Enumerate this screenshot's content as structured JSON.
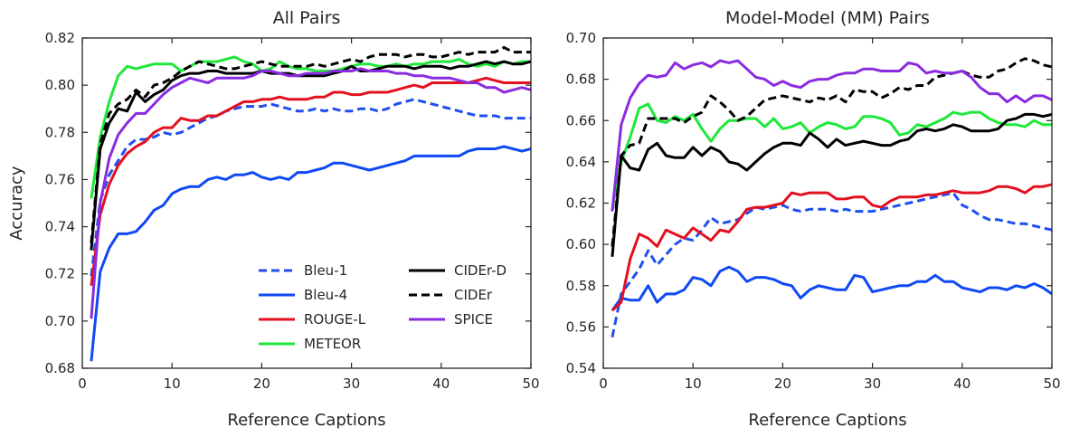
{
  "chart_data": [
    {
      "type": "line",
      "title": "All Pairs",
      "xlabel": "Reference Captions",
      "ylabel": "Accuracy",
      "xlim": [
        0,
        50
      ],
      "ylim": [
        0.68,
        0.82
      ],
      "xticks": [
        "0",
        "10",
        "20",
        "30",
        "40",
        "50"
      ],
      "yticks": [
        "0.68",
        "0.70",
        "0.72",
        "0.74",
        "0.76",
        "0.78",
        "0.80",
        "0.82"
      ],
      "legend_position": "lower-right",
      "legend_columns": 2,
      "x": [
        1,
        2,
        3,
        4,
        5,
        6,
        7,
        8,
        9,
        10,
        11,
        12,
        13,
        14,
        15,
        16,
        17,
        18,
        19,
        20,
        21,
        22,
        23,
        24,
        25,
        26,
        27,
        28,
        29,
        30,
        31,
        32,
        33,
        34,
        35,
        36,
        37,
        38,
        39,
        40,
        41,
        42,
        43,
        44,
        45,
        46,
        47,
        48,
        49,
        50
      ],
      "series": [
        {
          "name": "Bleu-1",
          "color": "#1f4ff0",
          "dash": "dashed",
          "values": [
            0.719,
            0.751,
            0.762,
            0.768,
            0.774,
            0.777,
            0.777,
            0.778,
            0.78,
            0.779,
            0.78,
            0.782,
            0.784,
            0.786,
            0.787,
            0.789,
            0.79,
            0.791,
            0.791,
            0.791,
            0.792,
            0.791,
            0.79,
            0.789,
            0.789,
            0.79,
            0.789,
            0.79,
            0.789,
            0.789,
            0.79,
            0.79,
            0.789,
            0.79,
            0.792,
            0.793,
            0.794,
            0.793,
            0.792,
            0.791,
            0.79,
            0.789,
            0.788,
            0.787,
            0.787,
            0.787,
            0.786,
            0.786,
            0.786,
            0.786
          ]
        },
        {
          "name": "Bleu-4",
          "color": "#0f48f5",
          "dash": "solid",
          "values": [
            0.683,
            0.721,
            0.731,
            0.737,
            0.737,
            0.738,
            0.742,
            0.747,
            0.749,
            0.754,
            0.756,
            0.757,
            0.757,
            0.76,
            0.761,
            0.76,
            0.762,
            0.762,
            0.763,
            0.761,
            0.76,
            0.761,
            0.76,
            0.763,
            0.763,
            0.764,
            0.765,
            0.767,
            0.767,
            0.766,
            0.765,
            0.764,
            0.765,
            0.766,
            0.767,
            0.768,
            0.77,
            0.77,
            0.77,
            0.77,
            0.77,
            0.77,
            0.772,
            0.773,
            0.773,
            0.773,
            0.774,
            0.773,
            0.772,
            0.773
          ]
        },
        {
          "name": "ROUGE-L",
          "color": "#e3101f",
          "dash": "solid",
          "values": [
            0.715,
            0.745,
            0.758,
            0.766,
            0.771,
            0.774,
            0.776,
            0.78,
            0.782,
            0.782,
            0.786,
            0.785,
            0.785,
            0.787,
            0.787,
            0.789,
            0.791,
            0.793,
            0.793,
            0.794,
            0.794,
            0.795,
            0.794,
            0.794,
            0.794,
            0.795,
            0.795,
            0.797,
            0.797,
            0.796,
            0.796,
            0.797,
            0.797,
            0.797,
            0.798,
            0.799,
            0.8,
            0.799,
            0.801,
            0.801,
            0.801,
            0.801,
            0.801,
            0.802,
            0.803,
            0.802,
            0.801,
            0.801,
            0.801,
            0.801
          ]
        },
        {
          "name": "METEOR",
          "color": "#1ee83a",
          "dash": "solid",
          "values": [
            0.752,
            0.778,
            0.793,
            0.804,
            0.808,
            0.807,
            0.808,
            0.809,
            0.809,
            0.809,
            0.806,
            0.808,
            0.81,
            0.81,
            0.81,
            0.811,
            0.812,
            0.81,
            0.809,
            0.806,
            0.807,
            0.81,
            0.808,
            0.807,
            0.807,
            0.806,
            0.806,
            0.806,
            0.807,
            0.808,
            0.809,
            0.809,
            0.808,
            0.808,
            0.809,
            0.808,
            0.809,
            0.809,
            0.81,
            0.81,
            0.81,
            0.811,
            0.809,
            0.808,
            0.809,
            0.808,
            0.81,
            0.809,
            0.81,
            0.81
          ]
        },
        {
          "name": "CIDEr-D",
          "color": "#000000",
          "dash": "solid",
          "values": [
            0.73,
            0.773,
            0.784,
            0.79,
            0.789,
            0.797,
            0.793,
            0.796,
            0.798,
            0.802,
            0.804,
            0.805,
            0.805,
            0.806,
            0.806,
            0.805,
            0.805,
            0.805,
            0.805,
            0.806,
            0.805,
            0.805,
            0.805,
            0.804,
            0.804,
            0.804,
            0.804,
            0.805,
            0.806,
            0.808,
            0.806,
            0.806,
            0.807,
            0.808,
            0.808,
            0.808,
            0.807,
            0.808,
            0.808,
            0.808,
            0.807,
            0.808,
            0.808,
            0.809,
            0.81,
            0.809,
            0.81,
            0.809,
            0.809,
            0.81
          ]
        },
        {
          "name": "CIDEr",
          "color": "#000000",
          "dash": "dashed",
          "values": [
            0.733,
            0.775,
            0.788,
            0.792,
            0.794,
            0.798,
            0.795,
            0.8,
            0.801,
            0.803,
            0.806,
            0.808,
            0.81,
            0.809,
            0.808,
            0.807,
            0.807,
            0.808,
            0.809,
            0.81,
            0.809,
            0.808,
            0.808,
            0.808,
            0.808,
            0.809,
            0.808,
            0.809,
            0.81,
            0.811,
            0.81,
            0.812,
            0.813,
            0.813,
            0.813,
            0.812,
            0.813,
            0.813,
            0.812,
            0.812,
            0.813,
            0.814,
            0.813,
            0.814,
            0.814,
            0.814,
            0.816,
            0.814,
            0.814,
            0.814
          ]
        },
        {
          "name": "SPICE",
          "color": "#8a2be2",
          "dash": "solid",
          "values": [
            0.701,
            0.75,
            0.769,
            0.779,
            0.784,
            0.788,
            0.788,
            0.792,
            0.796,
            0.799,
            0.801,
            0.803,
            0.802,
            0.801,
            0.803,
            0.803,
            0.803,
            0.803,
            0.804,
            0.806,
            0.806,
            0.805,
            0.804,
            0.804,
            0.805,
            0.805,
            0.805,
            0.806,
            0.806,
            0.806,
            0.807,
            0.806,
            0.806,
            0.806,
            0.805,
            0.805,
            0.804,
            0.804,
            0.803,
            0.803,
            0.803,
            0.802,
            0.801,
            0.801,
            0.799,
            0.799,
            0.797,
            0.798,
            0.799,
            0.798
          ]
        }
      ]
    },
    {
      "type": "line",
      "title": "Model-Model (MM) Pairs",
      "xlabel": "Reference Captions",
      "ylabel": "",
      "xlim": [
        0,
        50
      ],
      "ylim": [
        0.54,
        0.7
      ],
      "xticks": [
        "0",
        "10",
        "20",
        "30",
        "40",
        "50"
      ],
      "yticks": [
        "0.54",
        "0.56",
        "0.58",
        "0.60",
        "0.62",
        "0.64",
        "0.66",
        "0.68",
        "0.70"
      ],
      "x": [
        1,
        2,
        3,
        4,
        5,
        6,
        7,
        8,
        9,
        10,
        11,
        12,
        13,
        14,
        15,
        16,
        17,
        18,
        19,
        20,
        21,
        22,
        23,
        24,
        25,
        26,
        27,
        28,
        29,
        30,
        31,
        32,
        33,
        34,
        35,
        36,
        37,
        38,
        39,
        40,
        41,
        42,
        43,
        44,
        45,
        46,
        47,
        48,
        49,
        50
      ],
      "series": [
        {
          "name": "Bleu-1",
          "color": "#1f4ff0",
          "dash": "dashed",
          "values": [
            0.555,
            0.576,
            0.582,
            0.588,
            0.597,
            0.59,
            0.595,
            0.6,
            0.603,
            0.602,
            0.607,
            0.613,
            0.61,
            0.611,
            0.612,
            0.615,
            0.618,
            0.617,
            0.618,
            0.619,
            0.617,
            0.616,
            0.617,
            0.617,
            0.617,
            0.616,
            0.617,
            0.616,
            0.616,
            0.616,
            0.617,
            0.618,
            0.619,
            0.62,
            0.621,
            0.622,
            0.623,
            0.624,
            0.625,
            0.619,
            0.617,
            0.614,
            0.612,
            0.612,
            0.611,
            0.61,
            0.61,
            0.609,
            0.608,
            0.607
          ]
        },
        {
          "name": "Bleu-4",
          "color": "#0f48f5",
          "dash": "solid",
          "values": [
            0.568,
            0.574,
            0.573,
            0.573,
            0.58,
            0.572,
            0.576,
            0.576,
            0.578,
            0.584,
            0.583,
            0.58,
            0.587,
            0.589,
            0.587,
            0.582,
            0.584,
            0.584,
            0.583,
            0.581,
            0.58,
            0.574,
            0.578,
            0.58,
            0.579,
            0.578,
            0.578,
            0.585,
            0.584,
            0.577,
            0.578,
            0.579,
            0.58,
            0.58,
            0.582,
            0.582,
            0.585,
            0.582,
            0.582,
            0.579,
            0.578,
            0.577,
            0.579,
            0.579,
            0.578,
            0.58,
            0.579,
            0.581,
            0.579,
            0.576
          ]
        },
        {
          "name": "ROUGE-L",
          "color": "#e3101f",
          "dash": "solid",
          "values": [
            0.568,
            0.572,
            0.593,
            0.605,
            0.603,
            0.599,
            0.607,
            0.605,
            0.603,
            0.608,
            0.605,
            0.602,
            0.607,
            0.606,
            0.611,
            0.617,
            0.618,
            0.618,
            0.619,
            0.62,
            0.625,
            0.624,
            0.625,
            0.625,
            0.625,
            0.622,
            0.622,
            0.623,
            0.623,
            0.619,
            0.618,
            0.621,
            0.623,
            0.623,
            0.623,
            0.624,
            0.624,
            0.625,
            0.626,
            0.625,
            0.625,
            0.625,
            0.626,
            0.628,
            0.628,
            0.627,
            0.625,
            0.628,
            0.628,
            0.629
          ]
        },
        {
          "name": "METEOR",
          "color": "#1ee83a",
          "dash": "solid",
          "values": [
            0.617,
            0.64,
            0.652,
            0.666,
            0.668,
            0.66,
            0.659,
            0.662,
            0.66,
            0.663,
            0.656,
            0.65,
            0.656,
            0.66,
            0.66,
            0.661,
            0.661,
            0.657,
            0.661,
            0.656,
            0.657,
            0.659,
            0.654,
            0.657,
            0.659,
            0.658,
            0.656,
            0.657,
            0.662,
            0.662,
            0.661,
            0.659,
            0.653,
            0.654,
            0.658,
            0.657,
            0.659,
            0.661,
            0.664,
            0.663,
            0.664,
            0.664,
            0.661,
            0.659,
            0.658,
            0.658,
            0.657,
            0.66,
            0.658,
            0.658
          ]
        },
        {
          "name": "CIDEr-D",
          "color": "#000000",
          "dash": "solid",
          "values": [
            0.594,
            0.643,
            0.637,
            0.636,
            0.646,
            0.649,
            0.643,
            0.642,
            0.642,
            0.647,
            0.643,
            0.647,
            0.645,
            0.64,
            0.639,
            0.636,
            0.64,
            0.644,
            0.647,
            0.649,
            0.649,
            0.648,
            0.654,
            0.651,
            0.647,
            0.651,
            0.648,
            0.649,
            0.65,
            0.649,
            0.648,
            0.648,
            0.65,
            0.651,
            0.655,
            0.656,
            0.655,
            0.656,
            0.658,
            0.657,
            0.655,
            0.655,
            0.655,
            0.656,
            0.66,
            0.661,
            0.663,
            0.663,
            0.662,
            0.663
          ]
        },
        {
          "name": "CIDEr",
          "color": "#000000",
          "dash": "dashed",
          "values": [
            0.599,
            0.643,
            0.648,
            0.649,
            0.661,
            0.661,
            0.661,
            0.661,
            0.659,
            0.662,
            0.664,
            0.672,
            0.669,
            0.665,
            0.66,
            0.662,
            0.666,
            0.67,
            0.671,
            0.672,
            0.671,
            0.67,
            0.669,
            0.671,
            0.67,
            0.672,
            0.669,
            0.675,
            0.674,
            0.674,
            0.671,
            0.673,
            0.676,
            0.675,
            0.677,
            0.677,
            0.681,
            0.682,
            0.683,
            0.684,
            0.682,
            0.681,
            0.681,
            0.684,
            0.685,
            0.688,
            0.69,
            0.689,
            0.687,
            0.686
          ]
        },
        {
          "name": "SPICE",
          "color": "#8a2be2",
          "dash": "solid",
          "values": [
            0.616,
            0.658,
            0.671,
            0.678,
            0.682,
            0.681,
            0.682,
            0.688,
            0.685,
            0.687,
            0.688,
            0.686,
            0.689,
            0.688,
            0.689,
            0.685,
            0.681,
            0.68,
            0.677,
            0.679,
            0.677,
            0.676,
            0.679,
            0.68,
            0.68,
            0.682,
            0.683,
            0.683,
            0.685,
            0.685,
            0.684,
            0.684,
            0.684,
            0.688,
            0.687,
            0.683,
            0.684,
            0.683,
            0.683,
            0.684,
            0.681,
            0.676,
            0.673,
            0.673,
            0.669,
            0.672,
            0.669,
            0.672,
            0.672,
            0.67
          ]
        }
      ]
    }
  ]
}
